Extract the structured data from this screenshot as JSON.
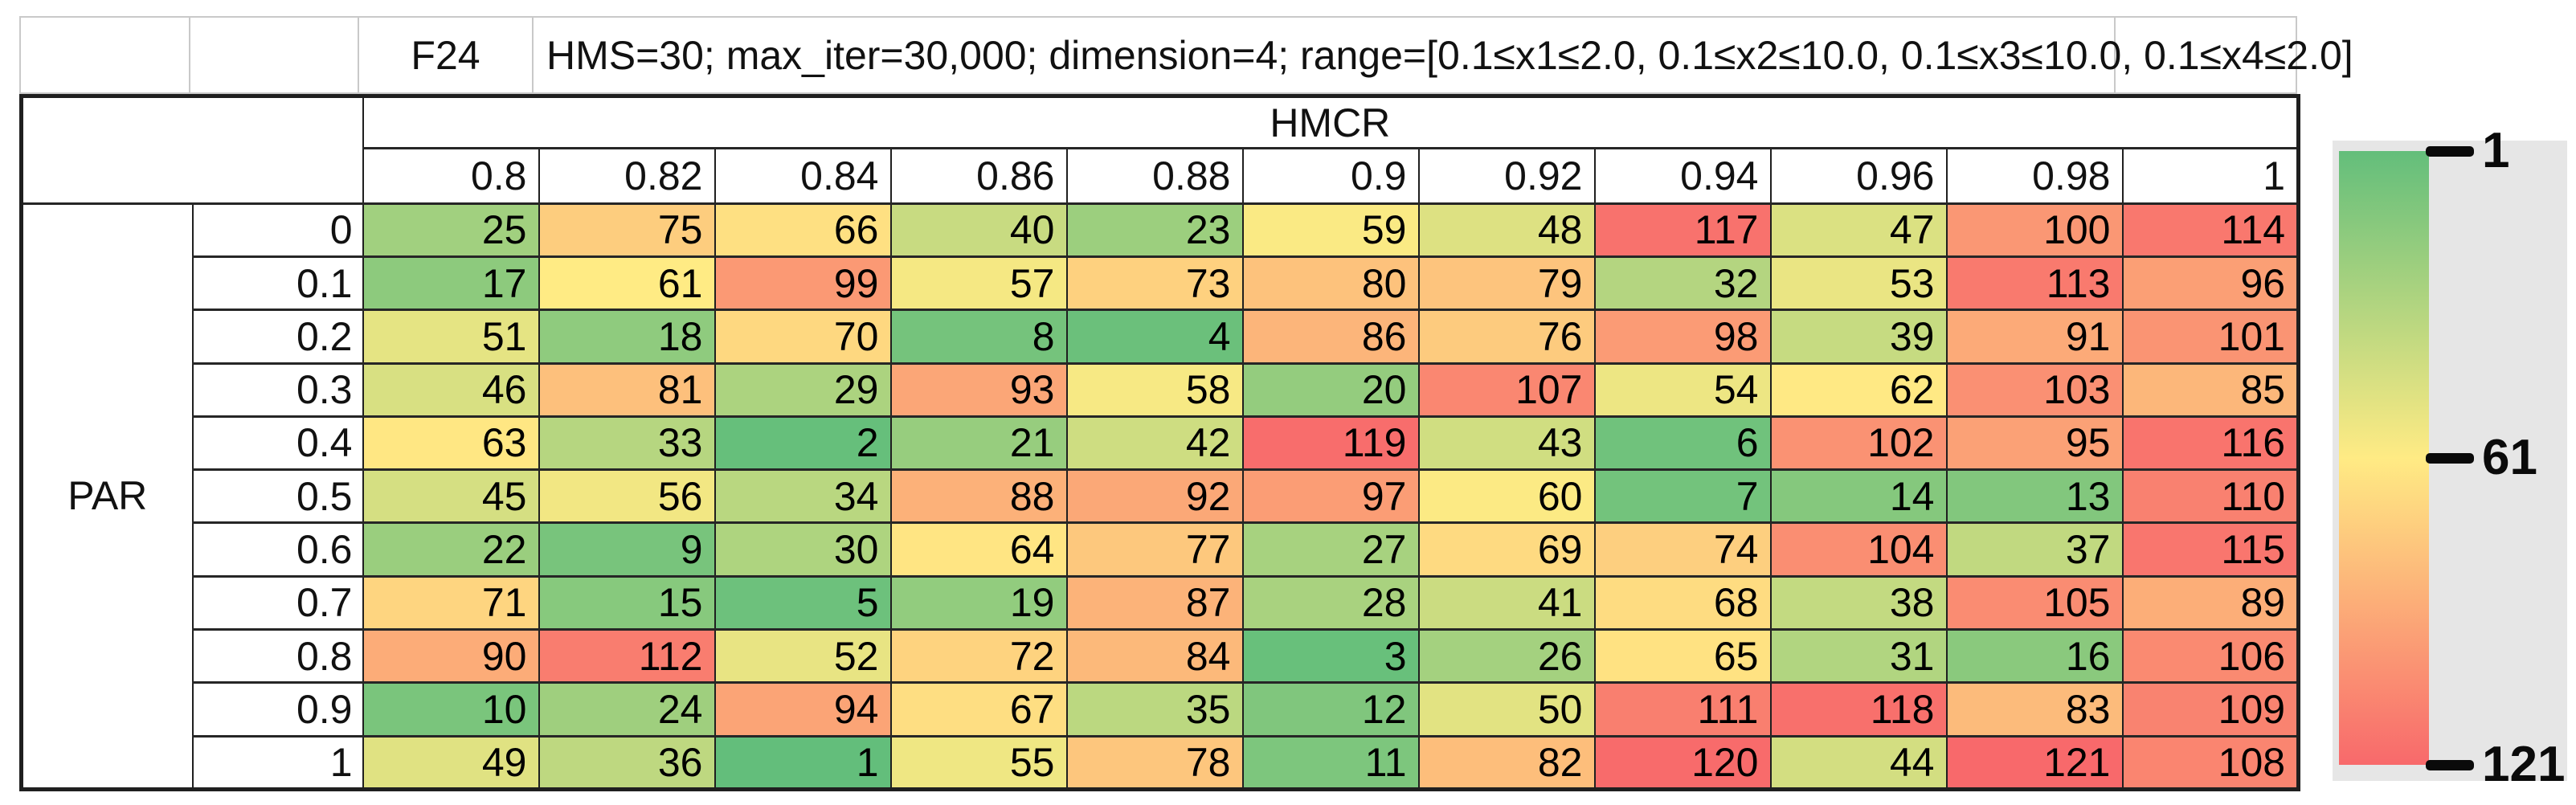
{
  "header": {
    "function_label": "F24",
    "settings": "HMS=30; max_iter=30,000; dimension=4; range=[0.1≤x1≤2.0, 0.1≤x2≤10.0, 0.1≤x3≤10.0, 0.1≤x4≤2.0]"
  },
  "chart_data": {
    "type": "heatmap",
    "col_axis_label": "HMCR",
    "row_axis_label": "PAR",
    "columns": [
      "0.8",
      "0.82",
      "0.84",
      "0.86",
      "0.88",
      "0.9",
      "0.92",
      "0.94",
      "0.96",
      "0.98",
      "1"
    ],
    "rows": [
      "0",
      "0.1",
      "0.2",
      "0.3",
      "0.4",
      "0.5",
      "0.6",
      "0.7",
      "0.8",
      "0.9",
      "1"
    ],
    "values": [
      [
        25,
        75,
        66,
        40,
        23,
        59,
        48,
        117,
        47,
        100,
        114
      ],
      [
        17,
        61,
        99,
        57,
        73,
        80,
        79,
        32,
        53,
        113,
        96
      ],
      [
        51,
        18,
        70,
        8,
        4,
        86,
        76,
        98,
        39,
        91,
        101
      ],
      [
        46,
        81,
        29,
        93,
        58,
        20,
        107,
        54,
        62,
        103,
        85
      ],
      [
        63,
        33,
        2,
        21,
        42,
        119,
        43,
        6,
        102,
        95,
        116
      ],
      [
        45,
        56,
        34,
        88,
        92,
        97,
        60,
        7,
        14,
        13,
        110
      ],
      [
        22,
        9,
        30,
        64,
        77,
        27,
        69,
        74,
        104,
        37,
        115
      ],
      [
        71,
        15,
        5,
        19,
        87,
        28,
        41,
        68,
        38,
        105,
        89
      ],
      [
        90,
        112,
        52,
        72,
        84,
        3,
        26,
        65,
        31,
        16,
        106
      ],
      [
        10,
        24,
        94,
        67,
        35,
        12,
        50,
        111,
        118,
        83,
        109
      ],
      [
        49,
        36,
        1,
        55,
        78,
        11,
        82,
        120,
        44,
        121,
        108
      ]
    ],
    "color_scale": {
      "min": 1,
      "mid": 61,
      "max": 121,
      "min_color": "#63BE7B",
      "mid_color": "#FFEB84",
      "max_color": "#F8696B"
    },
    "legend_ticks": [
      "1",
      "61",
      "121"
    ],
    "legend_panel_color": "#e6e6e6",
    "grid": true,
    "legend_position": "right"
  }
}
